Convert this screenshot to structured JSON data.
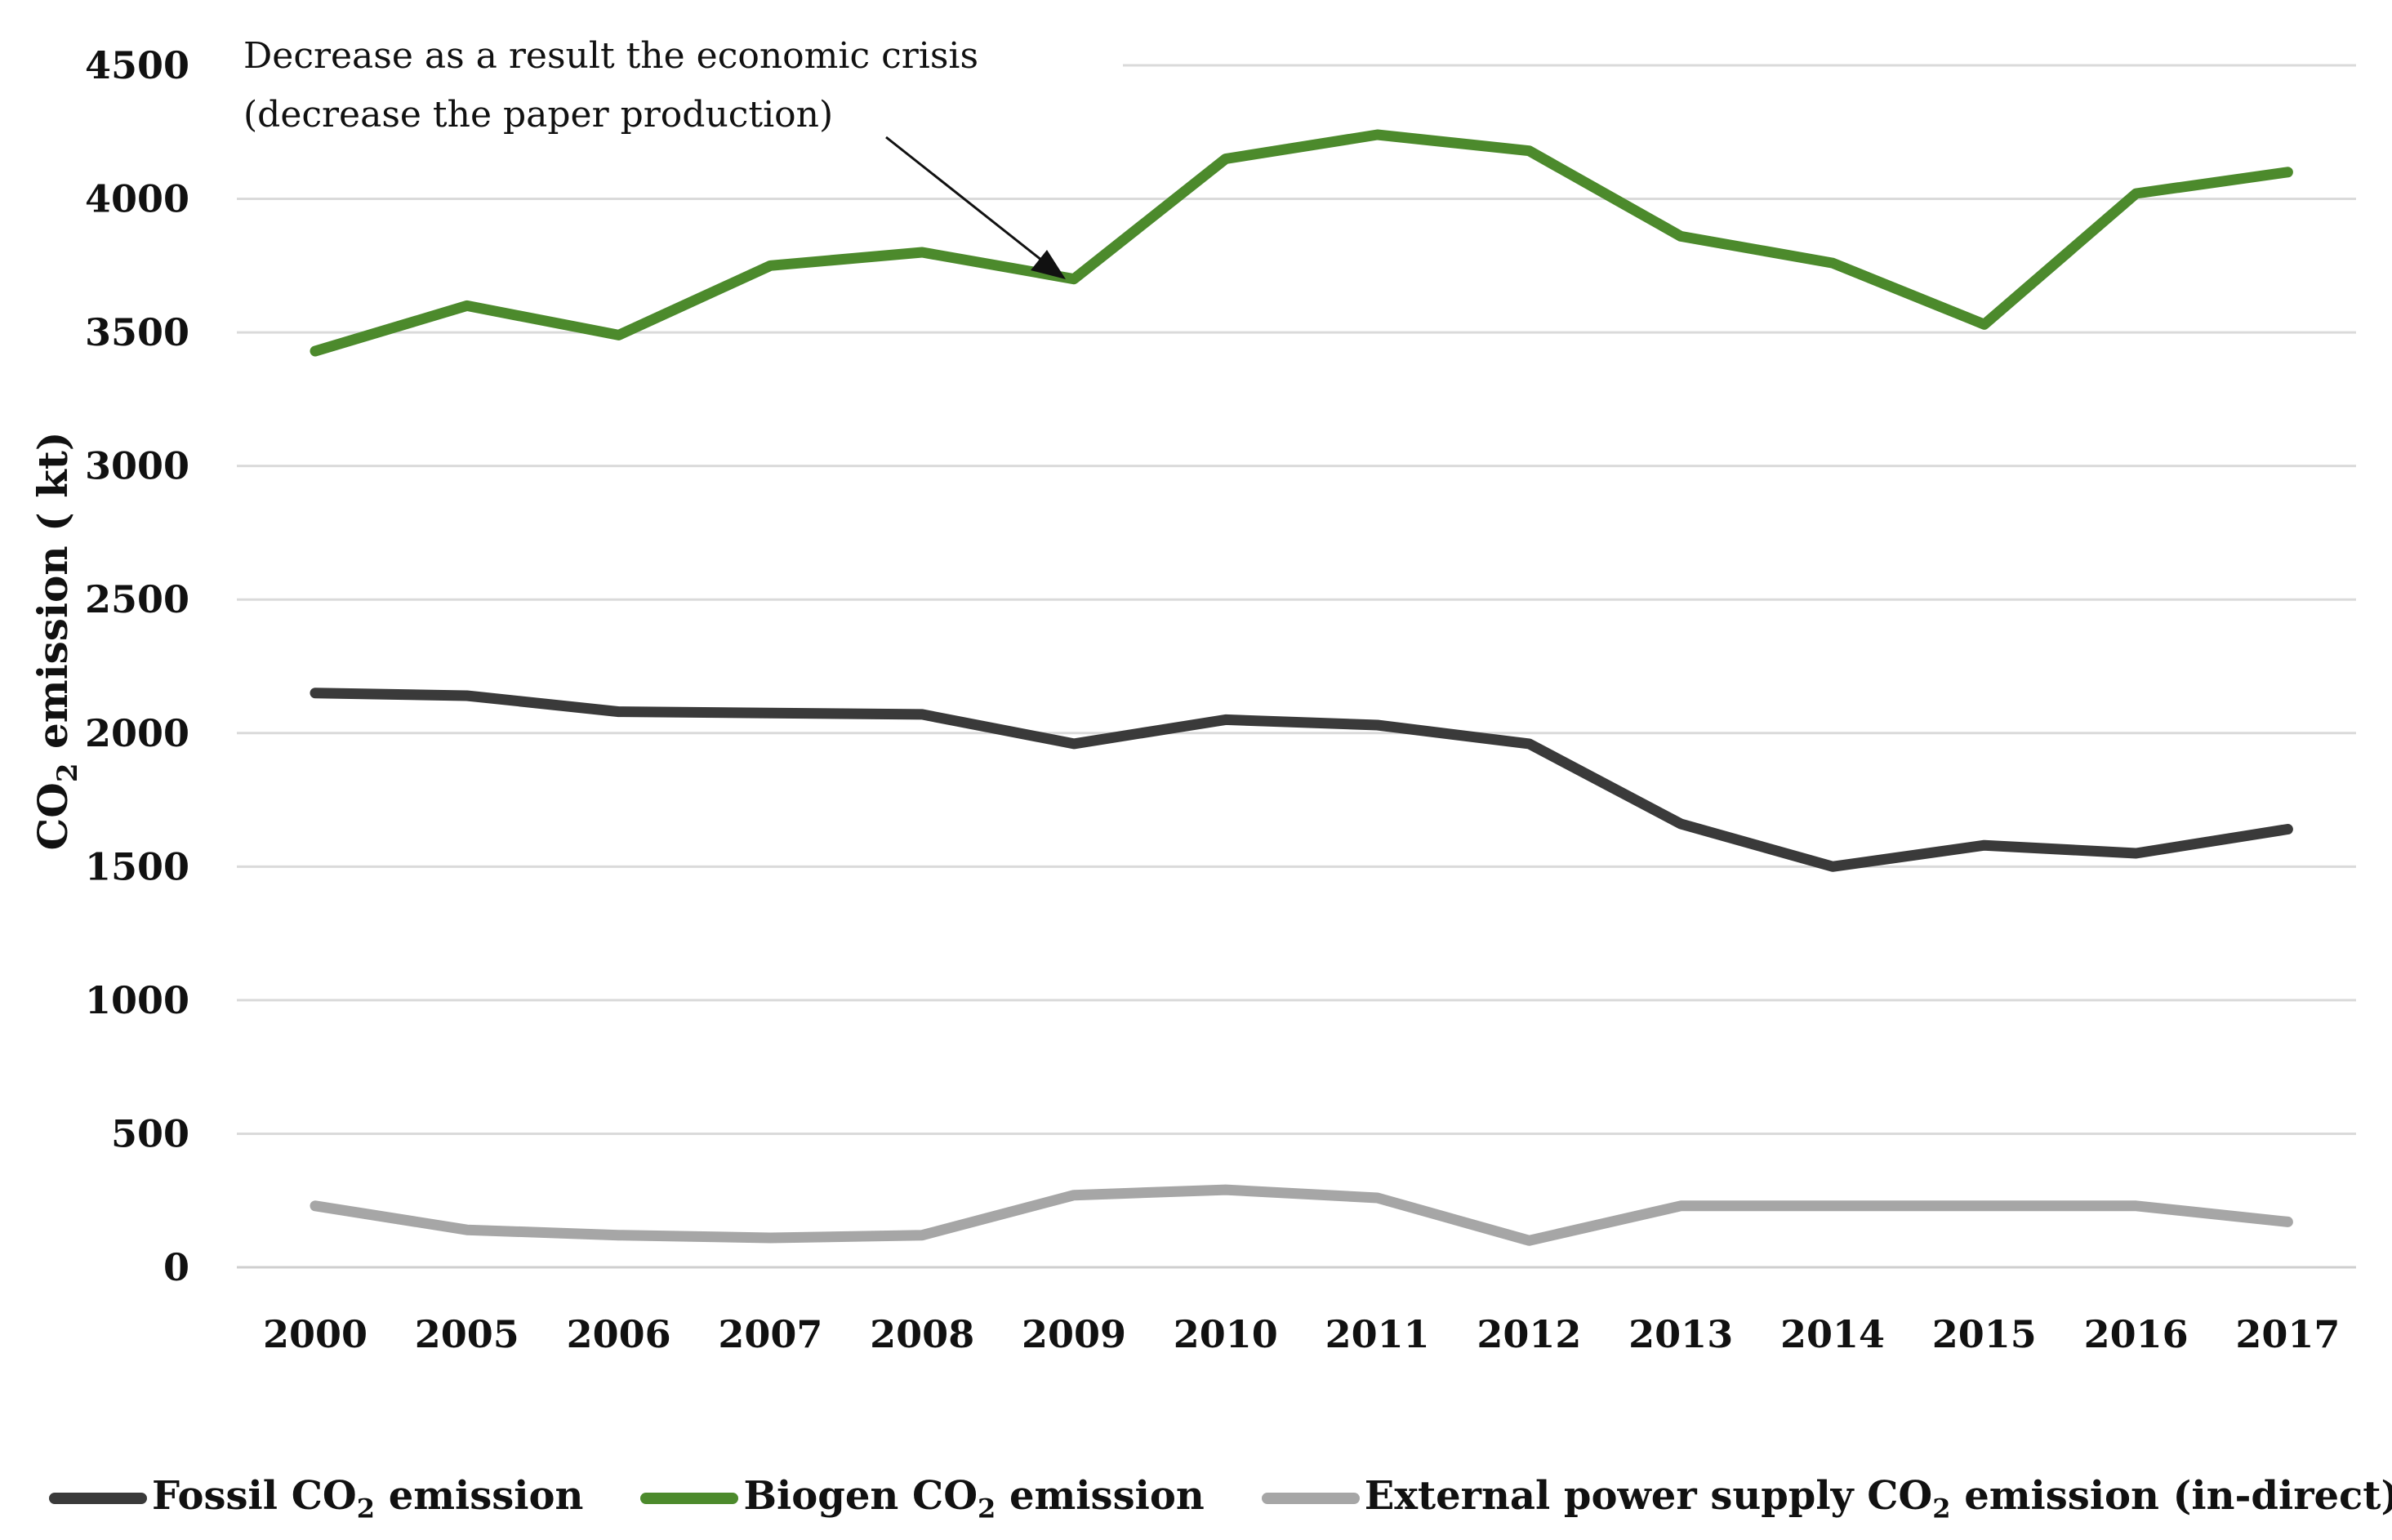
{
  "chart_data": {
    "type": "line",
    "title": "",
    "xlabel": "",
    "ylabel": "CO2 emission ( kt)",
    "ylabel_parts": {
      "prefix": "CO",
      "sub": "2",
      "suffix": " emission ( kt)"
    },
    "ylim": [
      0,
      4500
    ],
    "yticks": [
      0,
      500,
      1000,
      1500,
      2000,
      2500,
      3000,
      3500,
      4000,
      4500
    ],
    "grid": true,
    "categories": [
      "2000",
      "2005",
      "2006",
      "2007",
      "2008",
      "2009",
      "2010",
      "2011",
      "2012",
      "2013",
      "2014",
      "2015",
      "2016",
      "2017"
    ],
    "series": [
      {
        "name": "Fossil CO2 emission",
        "prefix": "Fossil CO",
        "sub": "2",
        "suffix": " emission",
        "color": "#3a3a3a",
        "values": [
          2150,
          2140,
          2080,
          2075,
          2070,
          1960,
          2050,
          2030,
          1960,
          1660,
          1500,
          1580,
          1550,
          1640
        ]
      },
      {
        "name": "Biogen CO2 emission",
        "prefix": "Biogen CO",
        "sub": "2",
        "suffix": " emission",
        "color": "#4c8a2c",
        "values": [
          3430,
          3600,
          3490,
          3750,
          3800,
          3700,
          4150,
          4240,
          4180,
          3860,
          3760,
          3530,
          4020,
          4100
        ]
      },
      {
        "name": "External power supply CO2 emission (in-direct)",
        "prefix": "External power supply CO",
        "sub": "2",
        "suffix": " emission (in-direct)",
        "color": "#a6a6a6",
        "values": [
          230,
          140,
          120,
          110,
          120,
          270,
          290,
          260,
          100,
          230,
          230,
          230,
          230,
          170
        ]
      }
    ],
    "annotation": {
      "lines": [
        "Decrease as a result the economic crisis",
        "(decrease the paper production)"
      ],
      "target_category": "2009",
      "target_series": "Biogen CO2 emission"
    },
    "legend_position": "bottom"
  }
}
